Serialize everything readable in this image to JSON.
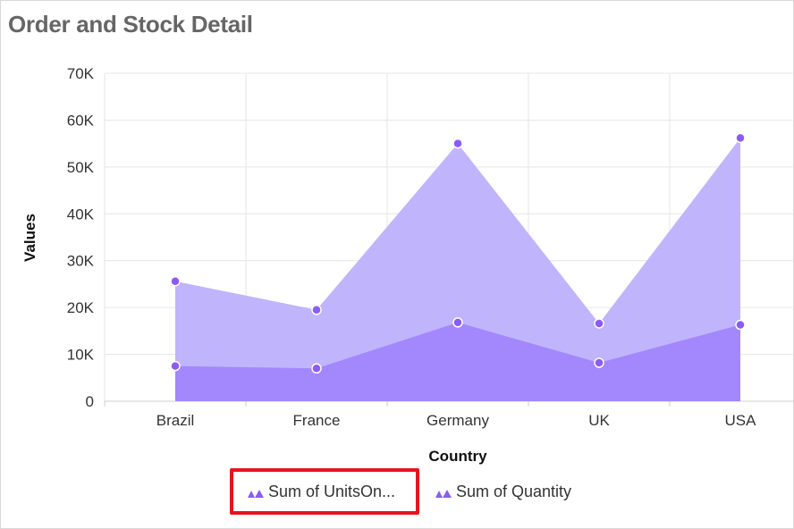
{
  "page_title": "Order and Stock Detail",
  "chart_data": {
    "type": "area",
    "categories": [
      "Brazil",
      "France",
      "Germany",
      "UK",
      "USA"
    ],
    "series": [
      {
        "name": "Sum of UnitsOn...",
        "values": [
          7500,
          7000,
          16800,
          8200,
          16300
        ],
        "color": "#a387fc"
      },
      {
        "name": "Sum of Quantity",
        "values": [
          25600,
          19500,
          55000,
          16600,
          56200
        ],
        "color": "#c0b4fc"
      }
    ],
    "xlabel": "Country",
    "ylabel": "Values",
    "ylim": [
      0,
      70000
    ],
    "yticks": [
      0,
      10000,
      20000,
      30000,
      40000,
      50000,
      60000,
      70000
    ],
    "ytick_labels": [
      "0",
      "10K",
      "20K",
      "30K",
      "40K",
      "50K",
      "60K",
      "70K"
    ],
    "grid": true,
    "legend_position": "bottom",
    "marker_color": "#8b5cf6"
  },
  "legend": {
    "items": [
      {
        "label": "Sum of UnitsOn...",
        "icon": "area-icon",
        "highlighted": true
      },
      {
        "label": "Sum of Quantity",
        "icon": "area-icon",
        "highlighted": false
      }
    ]
  },
  "highlight_color": "#e8141e"
}
